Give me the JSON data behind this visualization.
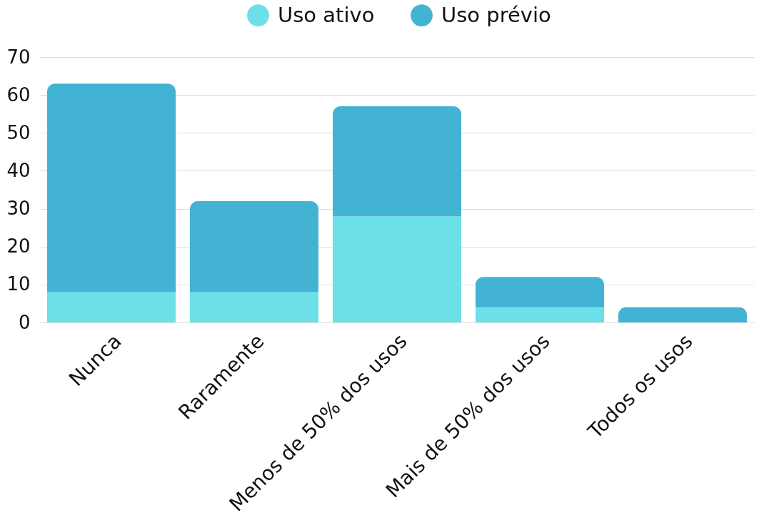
{
  "chart_data": {
    "type": "bar",
    "categories": [
      "Nunca",
      "Raramente",
      "Menos de 50% dos usos",
      "Mais de 50% dos usos",
      "Todos os usos"
    ],
    "series": [
      {
        "name": "Uso ativo",
        "color": "#6be0e6",
        "values": [
          8,
          8,
          28,
          4,
          0
        ]
      },
      {
        "name": "Uso prévio",
        "color": "#42b3d3",
        "values": [
          55,
          24,
          29,
          8,
          4
        ]
      }
    ],
    "stacked": true,
    "ylim": [
      0,
      70
    ],
    "yticks": [
      0,
      10,
      20,
      30,
      40,
      50,
      60,
      70
    ],
    "grid": "y",
    "legend": "top"
  }
}
